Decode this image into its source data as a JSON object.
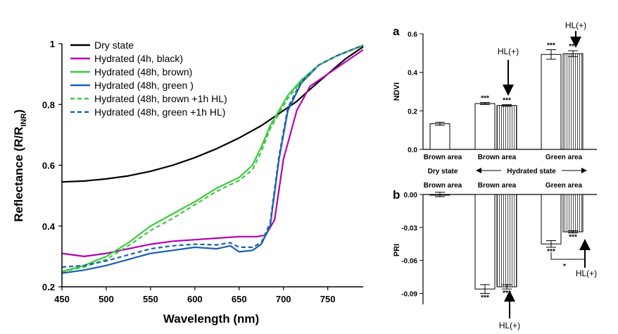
{
  "chart_data": [
    {
      "type": "line",
      "xlabel": "Wavelength (nm)",
      "ylabel": "Reflectance (R/R",
      "ylabel_sub": "INR",
      "ylabel_close": ")",
      "xlim": [
        450,
        790
      ],
      "ylim": [
        0.2,
        1.0
      ],
      "xticks": [
        "450",
        "500",
        "550",
        "600",
        "650",
        "700",
        "750"
      ],
      "yticks": [
        "0.2",
        "0.4",
        "0.6",
        "0.8",
        "1"
      ],
      "legend_position": "top-left",
      "series": [
        {
          "name": "Dry state",
          "color": "#000000",
          "dash": false,
          "x": [
            450,
            475,
            500,
            525,
            550,
            575,
            600,
            625,
            650,
            675,
            700,
            715,
            730,
            750,
            770,
            790
          ],
          "y": [
            0.545,
            0.548,
            0.555,
            0.565,
            0.58,
            0.6,
            0.625,
            0.655,
            0.69,
            0.73,
            0.78,
            0.81,
            0.85,
            0.9,
            0.95,
            0.99
          ]
        },
        {
          "name": "Hydrated (4h, black)",
          "color": "#b400b4",
          "dash": false,
          "x": [
            450,
            475,
            500,
            525,
            550,
            575,
            600,
            625,
            650,
            670,
            680,
            690,
            700,
            715,
            730,
            750,
            770,
            790
          ],
          "y": [
            0.31,
            0.3,
            0.31,
            0.325,
            0.34,
            0.35,
            0.355,
            0.36,
            0.365,
            0.365,
            0.37,
            0.42,
            0.62,
            0.78,
            0.86,
            0.9,
            0.94,
            0.98
          ]
        },
        {
          "name": "Hydrated (48h, brown)",
          "color": "#3cc83c",
          "dash": false,
          "x": [
            450,
            475,
            500,
            525,
            550,
            575,
            600,
            625,
            650,
            665,
            675,
            685,
            695,
            705,
            720,
            740,
            760,
            790
          ],
          "y": [
            0.25,
            0.27,
            0.3,
            0.345,
            0.4,
            0.44,
            0.48,
            0.525,
            0.56,
            0.6,
            0.66,
            0.73,
            0.78,
            0.83,
            0.88,
            0.93,
            0.96,
            0.995
          ]
        },
        {
          "name": "Hydrated (48h, green )",
          "color": "#1a5fb4",
          "dash": false,
          "x": [
            450,
            475,
            500,
            525,
            550,
            575,
            600,
            625,
            640,
            650,
            665,
            675,
            685,
            695,
            705,
            720,
            740,
            760,
            790
          ],
          "y": [
            0.245,
            0.255,
            0.27,
            0.29,
            0.31,
            0.32,
            0.33,
            0.325,
            0.335,
            0.315,
            0.32,
            0.34,
            0.4,
            0.62,
            0.78,
            0.87,
            0.93,
            0.96,
            0.995
          ]
        },
        {
          "name": "Hydrated (48h, brown +1h HL)",
          "color": "#3cc83c",
          "dash": true,
          "x": [
            450,
            475,
            500,
            525,
            550,
            575,
            600,
            625,
            650,
            665,
            675,
            685,
            695,
            705,
            720,
            740,
            760,
            790
          ],
          "y": [
            0.25,
            0.265,
            0.29,
            0.335,
            0.385,
            0.425,
            0.47,
            0.515,
            0.55,
            0.585,
            0.645,
            0.72,
            0.77,
            0.82,
            0.875,
            0.93,
            0.96,
            0.995
          ]
        },
        {
          "name": "Hydrated (48h, green +1h HL)",
          "color": "#1a5fb4",
          "dash": true,
          "x": [
            450,
            475,
            500,
            525,
            550,
            575,
            600,
            625,
            640,
            650,
            665,
            675,
            685,
            695,
            705,
            720,
            740,
            760,
            790
          ],
          "y": [
            0.265,
            0.27,
            0.285,
            0.305,
            0.325,
            0.335,
            0.34,
            0.338,
            0.345,
            0.33,
            0.33,
            0.345,
            0.41,
            0.63,
            0.79,
            0.875,
            0.93,
            0.96,
            0.995
          ]
        }
      ]
    },
    {
      "type": "bar",
      "panel": "a",
      "ylabel": "NDVI",
      "ylim": [
        0.0,
        0.6
      ],
      "yticks": [
        "0.0",
        "0.2",
        "0.4",
        "0.6"
      ],
      "categories": [
        "Brown area",
        "Brown area",
        "Green area"
      ],
      "group_labels": [
        "Dry state",
        "Hydrated state"
      ],
      "bars": [
        {
          "group": 0,
          "value": 0.133,
          "error": 0.008,
          "fill": "#ffffff",
          "stars": ""
        },
        {
          "group": 1,
          "value": 0.238,
          "error": 0.005,
          "fill": "#ffffff",
          "stars": "***"
        },
        {
          "group": 1,
          "value": 0.228,
          "error": 0.004,
          "fill": "striped",
          "stars": "***"
        },
        {
          "group": 2,
          "value": 0.493,
          "error": 0.025,
          "fill": "#ffffff",
          "stars": "***"
        },
        {
          "group": 2,
          "value": 0.497,
          "error": 0.015,
          "fill": "striped",
          "stars": "***"
        }
      ],
      "annotations": [
        "HL(+)",
        "HL(+)"
      ]
    },
    {
      "type": "bar",
      "panel": "b",
      "ylabel": "PRI",
      "ylim": [
        -0.1,
        0.0
      ],
      "yticks": [
        "0.00",
        "-0.03",
        "-0.06",
        "-0.09"
      ],
      "categories": [
        "Brown area",
        "Brown area",
        "Green area"
      ],
      "bars": [
        {
          "group": 0,
          "value": 0.0,
          "error": 0.002,
          "fill": "#ffffff",
          "stars": ""
        },
        {
          "group": 1,
          "value": -0.086,
          "error": 0.004,
          "fill": "#ffffff",
          "stars": "***"
        },
        {
          "group": 1,
          "value": -0.084,
          "error": 0.002,
          "fill": "striped",
          "stars": "***"
        },
        {
          "group": 2,
          "value": -0.045,
          "error": 0.003,
          "fill": "#ffffff",
          "stars": "***"
        },
        {
          "group": 2,
          "value": -0.034,
          "error": 0.001,
          "fill": "striped",
          "stars": "***"
        }
      ],
      "bracket_stars": "*",
      "annotations": [
        "HL(+)",
        "HL(+)"
      ]
    }
  ]
}
